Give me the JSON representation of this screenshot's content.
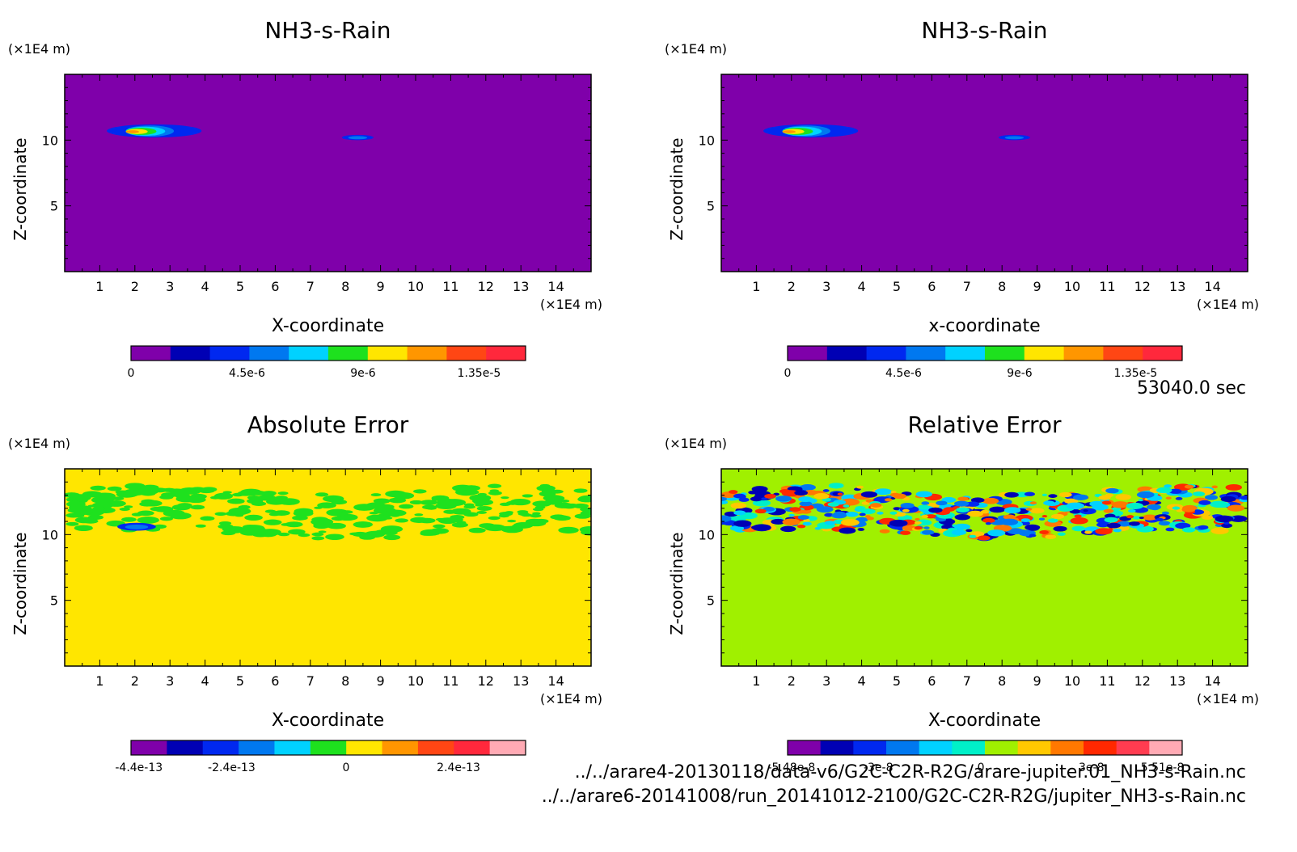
{
  "time": "53040.0 sec",
  "files": [
    "../../arare4-20130118/data-v6/G2C-C2R-R2G/arare-jupiter.01_NH3-s-Rain.nc",
    "../../arare6-20141008/run_20141012-2100/G2C-C2R-R2G/jupiter_NH3-s-Rain.nc"
  ],
  "chart_data": [
    {
      "type": "heatmap",
      "title": "NH3-s-Rain",
      "xlabel": "X-coordinate",
      "ylabel": "Z-coordinate",
      "x_unit": "(×1E4 m)",
      "y_unit": "(×1E4 m)",
      "xlim": [
        0,
        15
      ],
      "ylim": [
        0,
        15
      ],
      "x_ticks": [
        "1",
        "2",
        "3",
        "4",
        "5",
        "6",
        "7",
        "8",
        "9",
        "10",
        "11",
        "12",
        "13",
        "14"
      ],
      "y_ticks": [
        "5",
        "10"
      ],
      "background": "#7f00aa",
      "colorbar": {
        "colors": [
          "#7f00aa",
          "#0000b4",
          "#0028f0",
          "#0078f0",
          "#00d2ff",
          "#1ee11e",
          "#ffe600",
          "#ff9600",
          "#ff4614",
          "#ff283c"
        ],
        "labels": [
          "0",
          "4.5e-6",
          "9e-6",
          "1.35e-5"
        ]
      },
      "features": [
        {
          "region": "blob",
          "x": [
            1.2,
            3.9
          ],
          "z": [
            10.2,
            11.2
          ],
          "peak": "1.35e-5"
        },
        {
          "region": "blob",
          "x": [
            7.9,
            8.8
          ],
          "z": [
            10.0,
            10.4
          ],
          "peak": "4.5e-6"
        }
      ]
    },
    {
      "type": "heatmap",
      "title": "NH3-s-Rain",
      "xlabel": "x-coordinate",
      "ylabel": "Z-coordinate",
      "x_unit": "(×1E4 m)",
      "y_unit": "(×1E4 m)",
      "xlim": [
        0,
        15
      ],
      "ylim": [
        0,
        15
      ],
      "x_ticks": [
        "1",
        "2",
        "3",
        "4",
        "5",
        "6",
        "7",
        "8",
        "9",
        "10",
        "11",
        "12",
        "13",
        "14"
      ],
      "y_ticks": [
        "5",
        "10"
      ],
      "background": "#7f00aa",
      "colorbar": {
        "colors": [
          "#7f00aa",
          "#0000b4",
          "#0028f0",
          "#0078f0",
          "#00d2ff",
          "#1ee11e",
          "#ffe600",
          "#ff9600",
          "#ff4614",
          "#ff283c"
        ],
        "labels": [
          "0",
          "4.5e-6",
          "9e-6",
          "1.35e-5"
        ]
      },
      "features": [
        {
          "region": "blob",
          "x": [
            1.2,
            3.9
          ],
          "z": [
            10.2,
            11.2
          ],
          "peak": "1.35e-5"
        },
        {
          "region": "blob",
          "x": [
            7.9,
            8.8
          ],
          "z": [
            10.0,
            10.4
          ],
          "peak": "4.5e-6"
        }
      ]
    },
    {
      "type": "heatmap",
      "title": "Absolute Error",
      "xlabel": "X-coordinate",
      "ylabel": "Z-coordinate",
      "x_unit": "(×1E4 m)",
      "y_unit": "(×1E4 m)",
      "xlim": [
        0,
        15
      ],
      "ylim": [
        0,
        15
      ],
      "x_ticks": [
        "1",
        "2",
        "3",
        "4",
        "5",
        "6",
        "7",
        "8",
        "9",
        "10",
        "11",
        "12",
        "13",
        "14"
      ],
      "y_ticks": [
        "5",
        "10"
      ],
      "background": "#ffe600",
      "colorbar": {
        "colors": [
          "#7f00aa",
          "#0000b4",
          "#0028f0",
          "#0078f0",
          "#00d2ff",
          "#1ee11e",
          "#ffe600",
          "#ff9600",
          "#ff4614",
          "#ff283c",
          "#ffaab4"
        ],
        "labels": [
          "-4.4e-13",
          "-2.4e-13",
          "0",
          "2.4e-13"
        ]
      },
      "features": [
        {
          "region": "noise band",
          "x": [
            0,
            15
          ],
          "z": [
            9.5,
            13.6
          ],
          "color": "#1ee11e"
        },
        {
          "region": "blob",
          "x": [
            1.5,
            2.6
          ],
          "z": [
            10.3,
            10.9
          ],
          "color": "#0028f0"
        }
      ]
    },
    {
      "type": "heatmap",
      "title": "Relative Error",
      "xlabel": "X-coordinate",
      "ylabel": "Z-coordinate",
      "x_unit": "(×1E4 m)",
      "y_unit": "(×1E4 m)",
      "xlim": [
        0,
        15
      ],
      "ylim": [
        0,
        15
      ],
      "x_ticks": [
        "1",
        "2",
        "3",
        "4",
        "5",
        "6",
        "7",
        "8",
        "9",
        "10",
        "11",
        "12",
        "13",
        "14"
      ],
      "y_ticks": [
        "5",
        "10"
      ],
      "background": "#a0f000",
      "colorbar": {
        "colors": [
          "#7f00aa",
          "#0000b4",
          "#0028f0",
          "#0078f0",
          "#00d2ff",
          "#00f0c8",
          "#a0f000",
          "#ffc800",
          "#ff7800",
          "#ff2800",
          "#ff3c50",
          "#ffaab4"
        ],
        "labels": [
          "-5.48e-8",
          "-3e-8",
          "0",
          "3e-8",
          "5.51e-8"
        ]
      },
      "features": [
        {
          "region": "noise band",
          "x": [
            0,
            15
          ],
          "z": [
            9.5,
            13.6
          ],
          "color": "mixed"
        }
      ]
    }
  ]
}
